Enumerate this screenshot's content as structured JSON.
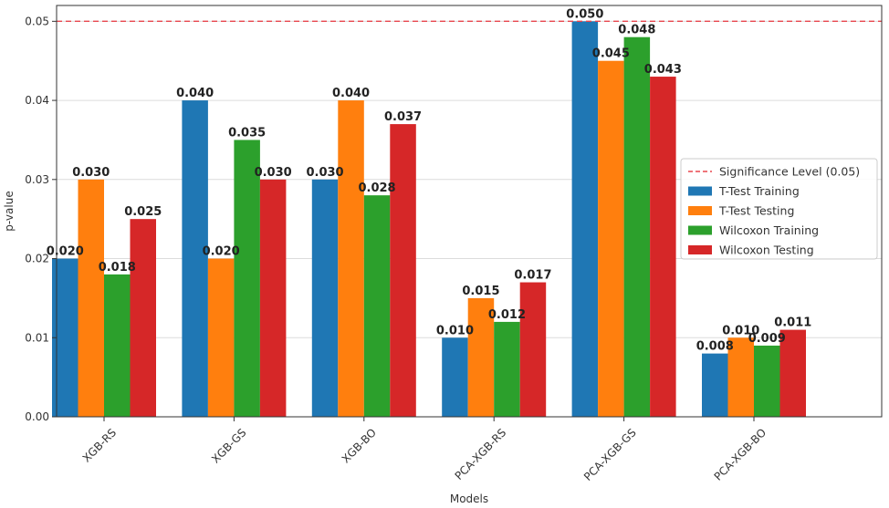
{
  "chart_data": {
    "type": "bar",
    "xlabel": "Models",
    "ylabel": "p-value",
    "ylim": [
      0,
      0.052
    ],
    "yticks": [
      "0.00",
      "0.01",
      "0.02",
      "0.03",
      "0.04",
      "0.05"
    ],
    "categories": [
      "XGB-RS",
      "XGB-GS",
      "XGB-BO",
      "PCA-XGB-RS",
      "PCA-XGB-GS",
      "PCA-XGB-BO"
    ],
    "series": [
      {
        "name": "T-Test Training",
        "color": "#1f77b4",
        "values": [
          0.02,
          0.04,
          0.03,
          0.01,
          0.05,
          0.008
        ],
        "labels": [
          "0.020",
          "0.040",
          "0.030",
          "0.010",
          "0.050",
          "0.008"
        ]
      },
      {
        "name": "T-Test Testing",
        "color": "#ff7f0e",
        "values": [
          0.03,
          0.02,
          0.04,
          0.015,
          0.045,
          0.01
        ],
        "labels": [
          "0.030",
          "0.020",
          "0.040",
          "0.015",
          "0.045",
          "0.010"
        ]
      },
      {
        "name": "Wilcoxon Training",
        "color": "#2ca02c",
        "values": [
          0.018,
          0.035,
          0.028,
          0.012,
          0.048,
          0.009
        ],
        "labels": [
          "0.018",
          "0.035",
          "0.028",
          "0.012",
          "0.048",
          "0.009"
        ]
      },
      {
        "name": "Wilcoxon Testing",
        "color": "#d62728",
        "values": [
          0.025,
          0.03,
          0.037,
          0.017,
          0.043,
          0.011
        ],
        "labels": [
          "0.025",
          "0.030",
          "0.037",
          "0.017",
          "0.043",
          "0.011"
        ]
      }
    ],
    "reference_line": {
      "name": "Significance Level (0.05)",
      "value": 0.05,
      "color": "#e8464e"
    },
    "grid": "y",
    "legend_position": "right"
  }
}
